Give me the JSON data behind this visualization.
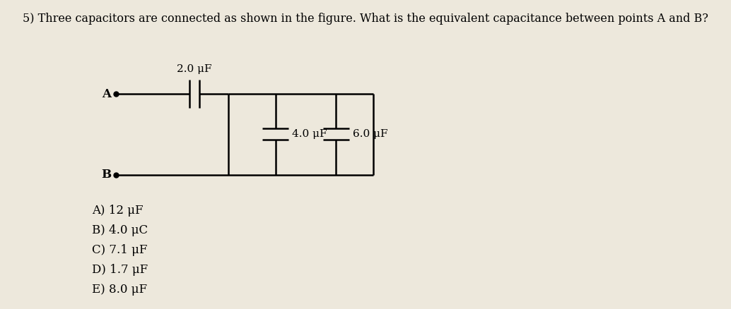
{
  "title": "5) Three capacitors are connected as shown in the figure. What is the equivalent capacitance between points A and B?",
  "title_fontsize": 11.5,
  "fig_bg_color": "#ede8dc",
  "circuit": {
    "A_label": "A",
    "B_label": "B",
    "cap1_label": "2.0 μF",
    "cap2_label": "4.0 μF",
    "cap3_label": "6.0 μF"
  },
  "choices": [
    "A) 12 μF",
    "B) 4.0 μC",
    "C) 7.1 μF",
    "D) 1.7 μF",
    "E) 8.0 μF"
  ],
  "choices_fontsize": 12,
  "line_color": "#000000",
  "text_color": "#000000"
}
